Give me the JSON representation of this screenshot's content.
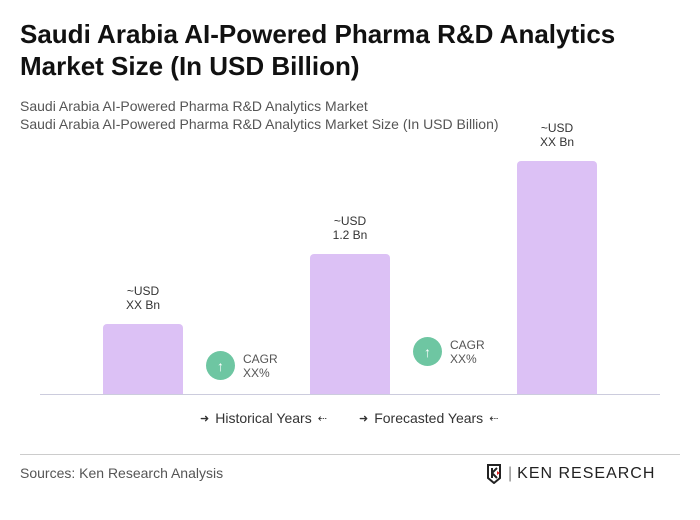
{
  "title": "Saudi Arabia AI-Powered Pharma R&D Analytics Market Size (In USD Billion)",
  "subtitle1": "Saudi Arabia AI-Powered Pharma R&D Analytics Market",
  "subtitle2": "Saudi Arabia AI-Powered Pharma R&D Analytics Market Size (In USD Billion)",
  "chart_data": {
    "type": "bar",
    "categories": [
      "",
      "",
      ""
    ],
    "values": [
      0.6,
      1.2,
      2.0
    ],
    "data_labels": [
      [
        "~USD",
        "XX Bn"
      ],
      [
        "~USD",
        "1.2 Bn"
      ],
      [
        "~USD",
        "XX Bn"
      ]
    ],
    "colors": {
      "bar": "#dcc1f5",
      "cagr": "#6ec6a2"
    },
    "cagr": [
      {
        "label": "CAGR",
        "value": "XX%"
      },
      {
        "label": "CAGR",
        "value": "XX%"
      }
    ],
    "legend": [
      "Historical Years",
      "Forecasted Years"
    ],
    "grid": false
  },
  "sources": "Sources: Ken Research Analysis",
  "logo": "KEN RESEARCH"
}
